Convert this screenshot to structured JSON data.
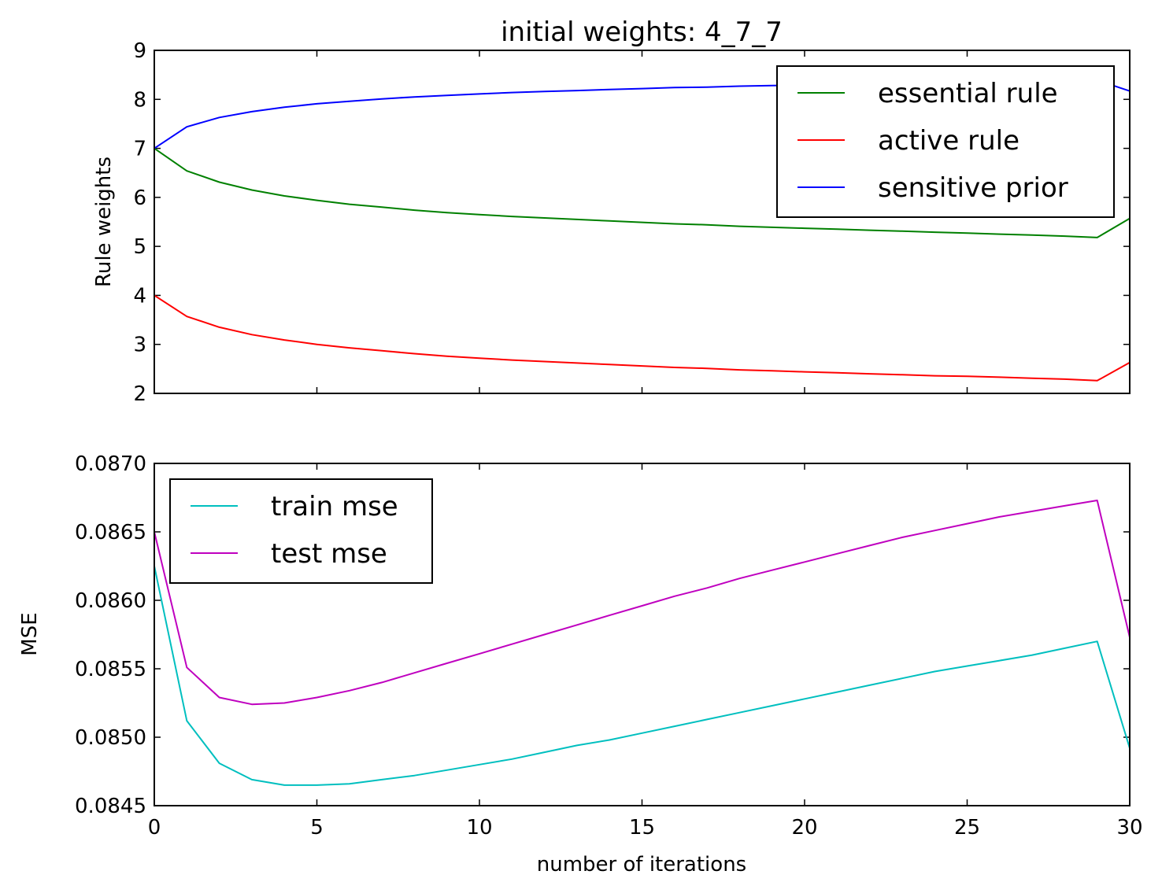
{
  "chart_data": [
    {
      "type": "line",
      "title": "initial weights: 4_7_7",
      "xlabel": "",
      "ylabel": "Rule weights",
      "xlim": [
        0,
        30
      ],
      "ylim": [
        2,
        9
      ],
      "xticks": [
        0,
        5,
        10,
        15,
        20,
        25,
        30
      ],
      "yticks": [
        "2",
        "3",
        "4",
        "5",
        "6",
        "7",
        "8",
        "9"
      ],
      "show_xtick_labels": false,
      "grid": false,
      "legend_position": "top-right",
      "x": [
        0,
        1,
        2,
        3,
        4,
        5,
        6,
        7,
        8,
        9,
        10,
        11,
        12,
        13,
        14,
        15,
        16,
        17,
        18,
        19,
        20,
        21,
        22,
        23,
        24,
        25,
        26,
        27,
        28,
        29,
        30
      ],
      "series": [
        {
          "name": "essential rule",
          "color": "#008000",
          "values": [
            7.0,
            6.54,
            6.31,
            6.15,
            6.03,
            5.94,
            5.86,
            5.8,
            5.74,
            5.69,
            5.65,
            5.61,
            5.58,
            5.55,
            5.52,
            5.49,
            5.46,
            5.44,
            5.41,
            5.39,
            5.37,
            5.35,
            5.33,
            5.31,
            5.29,
            5.27,
            5.25,
            5.23,
            5.21,
            5.18,
            5.57
          ]
        },
        {
          "name": "active rule",
          "color": "#ff0000",
          "values": [
            4.0,
            3.57,
            3.35,
            3.2,
            3.09,
            3.0,
            2.93,
            2.87,
            2.81,
            2.76,
            2.72,
            2.68,
            2.65,
            2.62,
            2.59,
            2.56,
            2.53,
            2.51,
            2.48,
            2.46,
            2.44,
            2.42,
            2.4,
            2.38,
            2.36,
            2.35,
            2.33,
            2.31,
            2.29,
            2.26,
            2.63
          ]
        },
        {
          "name": "sensitive prior",
          "color": "#0000ff",
          "values": [
            7.0,
            7.44,
            7.63,
            7.75,
            7.84,
            7.91,
            7.96,
            8.01,
            8.05,
            8.08,
            8.11,
            8.14,
            8.16,
            8.18,
            8.2,
            8.22,
            8.24,
            8.25,
            8.27,
            8.28,
            8.29,
            8.31,
            8.32,
            8.33,
            8.34,
            8.35,
            8.36,
            8.37,
            8.38,
            8.39,
            8.17
          ]
        }
      ]
    },
    {
      "type": "line",
      "title": "",
      "xlabel": "number of iterations",
      "ylabel": "MSE",
      "xlim": [
        0,
        30
      ],
      "ylim": [
        0.0845,
        0.087
      ],
      "xticks": [
        "0",
        "5",
        "10",
        "15",
        "20",
        "25",
        "30"
      ],
      "yticks": [
        "0.0845",
        "0.0850",
        "0.0855",
        "0.0860",
        "0.0865",
        "0.0870"
      ],
      "show_xtick_labels": true,
      "grid": false,
      "legend_position": "top-left",
      "x": [
        0,
        1,
        2,
        3,
        4,
        5,
        6,
        7,
        8,
        9,
        10,
        11,
        12,
        13,
        14,
        15,
        16,
        17,
        18,
        19,
        20,
        21,
        22,
        23,
        24,
        25,
        26,
        27,
        28,
        29,
        30
      ],
      "series": [
        {
          "name": "train mse",
          "color": "#00bfbf",
          "values": [
            0.08625,
            0.08512,
            0.08481,
            0.08469,
            0.08465,
            0.08465,
            0.08466,
            0.08469,
            0.08472,
            0.08476,
            0.0848,
            0.08484,
            0.08489,
            0.08494,
            0.08498,
            0.08503,
            0.08508,
            0.08513,
            0.08518,
            0.08523,
            0.08528,
            0.08533,
            0.08538,
            0.08543,
            0.08548,
            0.08552,
            0.08556,
            0.0856,
            0.08565,
            0.0857,
            0.08492
          ]
        },
        {
          "name": "test mse",
          "color": "#bf00bf",
          "values": [
            0.0865,
            0.08551,
            0.08529,
            0.08524,
            0.08525,
            0.08529,
            0.08534,
            0.0854,
            0.08547,
            0.08554,
            0.08561,
            0.08568,
            0.08575,
            0.08582,
            0.08589,
            0.08596,
            0.08603,
            0.08609,
            0.08616,
            0.08622,
            0.08628,
            0.08634,
            0.0864,
            0.08646,
            0.08651,
            0.08656,
            0.08661,
            0.08665,
            0.08669,
            0.08673,
            0.08573
          ]
        }
      ]
    }
  ]
}
